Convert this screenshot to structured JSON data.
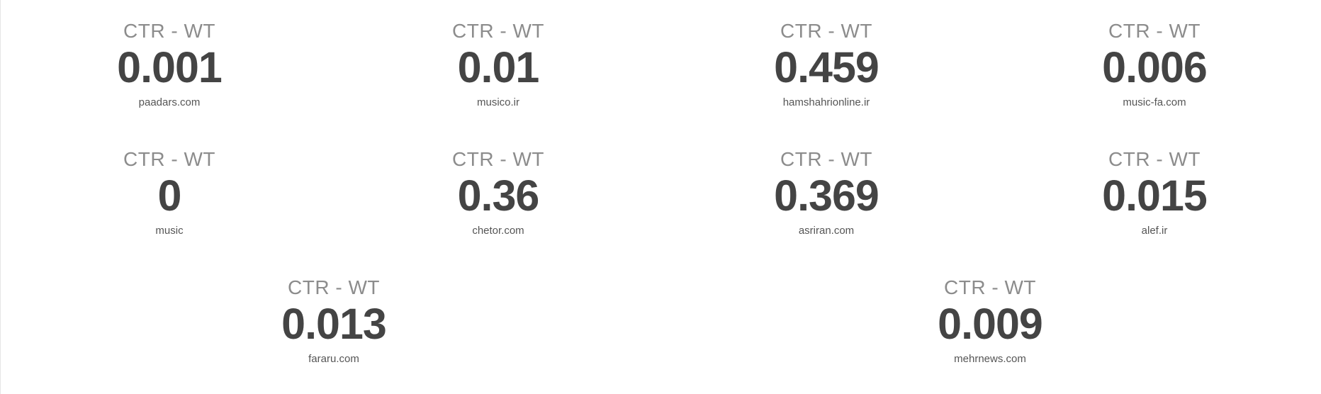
{
  "metrics": [
    {
      "label": "CTR - WT",
      "value": "0.001",
      "site": "paadars.com"
    },
    {
      "label": "CTR - WT",
      "value": "0.01",
      "site": "musico.ir"
    },
    {
      "label": "CTR - WT",
      "value": "0.459",
      "site": "hamshahrionline.ir"
    },
    {
      "label": "CTR - WT",
      "value": "0.006",
      "site": "music-fa.com"
    },
    {
      "label": "CTR - WT",
      "value": "0",
      "site": "music"
    },
    {
      "label": "CTR - WT",
      "value": "0.36",
      "site": "chetor.com"
    },
    {
      "label": "CTR - WT",
      "value": "0.369",
      "site": "asriran.com"
    },
    {
      "label": "CTR - WT",
      "value": "0.015",
      "site": "alef.ir"
    },
    {
      "label": "CTR - WT",
      "value": "0.013",
      "site": "fararu.com"
    },
    {
      "label": "CTR - WT",
      "value": "0.009",
      "site": "mehrnews.com"
    }
  ]
}
